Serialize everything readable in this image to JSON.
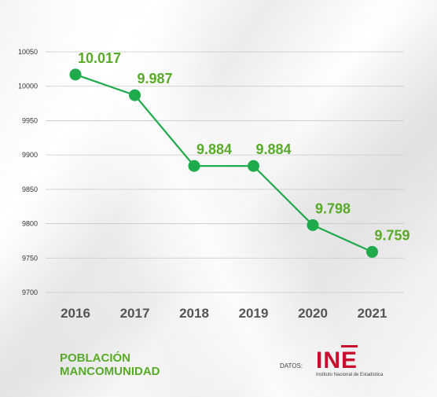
{
  "chart_data": {
    "type": "line",
    "title": "POBLACIÓN MANCOMUNIDAD",
    "title_lines": [
      "POBLACIÓN",
      "MANCOMUNIDAD"
    ],
    "categories": [
      "2016",
      "2017",
      "2018",
      "2019",
      "2020",
      "2021"
    ],
    "series": [
      {
        "values": [
          10017,
          9987,
          9884,
          9884,
          9798,
          9759
        ],
        "data_labels": [
          "10.017",
          "9.987",
          "9.884",
          "9.884",
          "9.798",
          "9.759"
        ],
        "color": "#1faa4c"
      }
    ],
    "ylim": [
      9700,
      10050
    ],
    "yticks": [
      9700,
      9750,
      9800,
      9850,
      9900,
      9950,
      10000,
      10050
    ],
    "grid": true,
    "legend": "none",
    "label_color": "#5aaa2a"
  },
  "source": {
    "prefix": "DATOS:",
    "logo_text": "INE",
    "logo_caption": "Instituto Nacional de Estadística",
    "logo_color": "#c8102e"
  }
}
